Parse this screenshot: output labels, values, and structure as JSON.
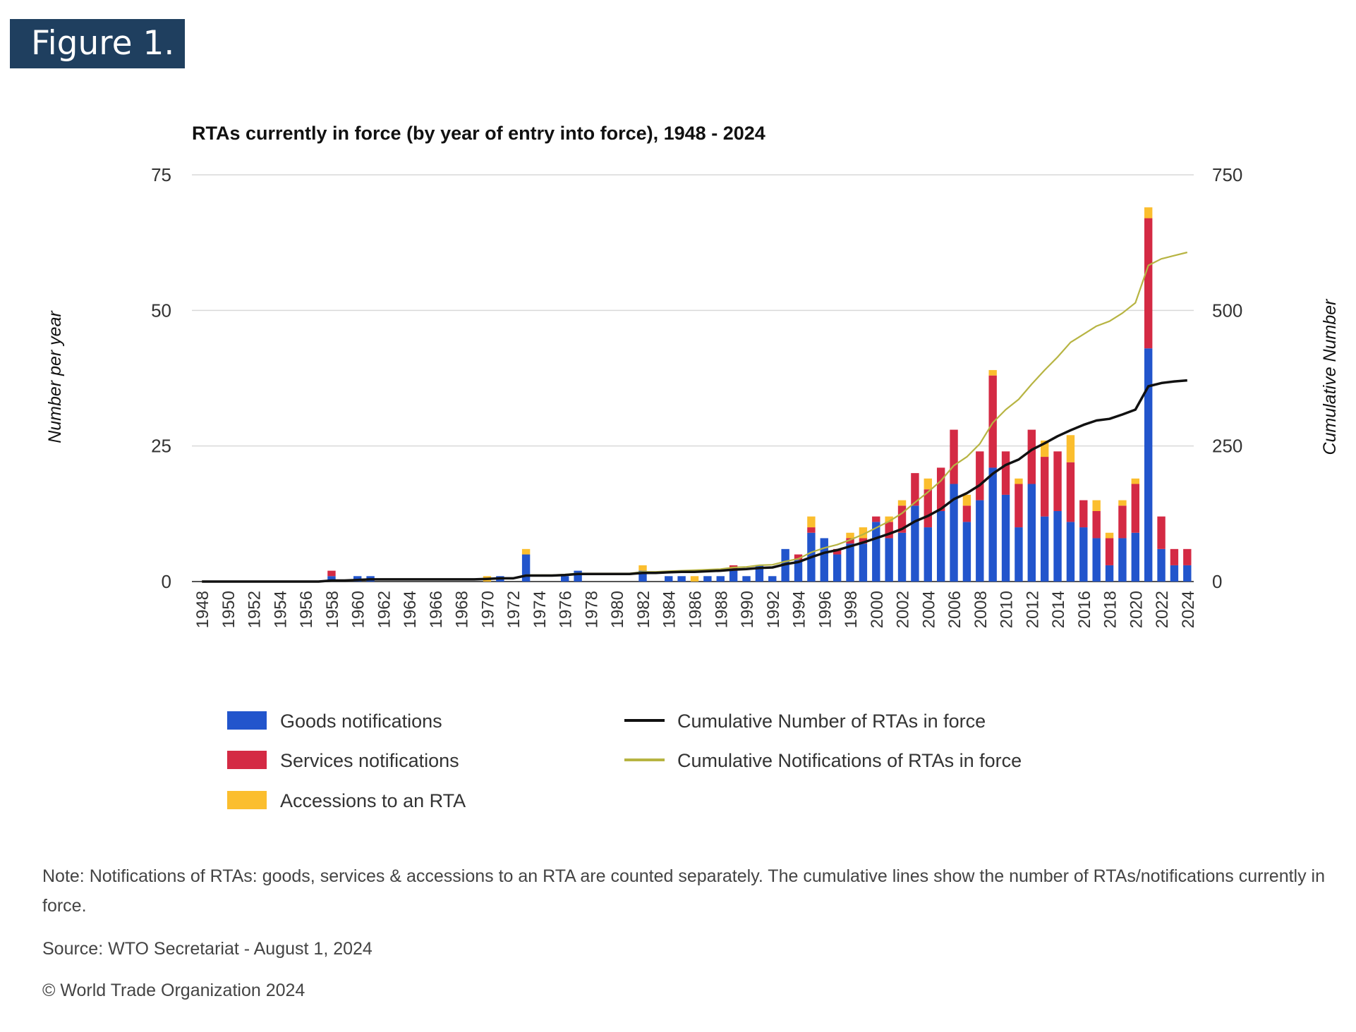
{
  "figure_label": "Figure 1.",
  "colors": {
    "goods": "#2255cc",
    "services": "#d42a44",
    "accessions": "#fbbe2e",
    "cum_rtas": "#111111",
    "cum_notif": "#b7b442",
    "grid": "#d9d9d9"
  },
  "chart_data": {
    "type": "bar",
    "title": "RTAs currently in force (by year of entry into force), 1948 - 2024",
    "ylabel_left": "Number per year",
    "ylabel_right": "Cumulative Number",
    "ylim_left": [
      0,
      75
    ],
    "ylim_right": [
      0,
      750
    ],
    "yticks_left": [
      "0",
      "25",
      "50",
      "75"
    ],
    "yticks_right": [
      "0",
      "250",
      "500",
      "750"
    ],
    "years": [
      1948,
      1949,
      1950,
      1951,
      1952,
      1953,
      1954,
      1955,
      1956,
      1957,
      1958,
      1959,
      1960,
      1961,
      1962,
      1963,
      1964,
      1965,
      1966,
      1967,
      1968,
      1969,
      1970,
      1971,
      1972,
      1973,
      1974,
      1975,
      1976,
      1977,
      1978,
      1979,
      1980,
      1981,
      1982,
      1983,
      1984,
      1985,
      1986,
      1987,
      1988,
      1989,
      1990,
      1991,
      1992,
      1993,
      1994,
      1995,
      1996,
      1997,
      1998,
      1999,
      2000,
      2001,
      2002,
      2003,
      2004,
      2005,
      2006,
      2007,
      2008,
      2009,
      2010,
      2011,
      2012,
      2013,
      2014,
      2015,
      2016,
      2017,
      2018,
      2019,
      2020,
      2021,
      2022,
      2023,
      2024
    ],
    "year_labels": [
      "1948",
      "1950",
      "1952",
      "1954",
      "1956",
      "1958",
      "1960",
      "1962",
      "1964",
      "1966",
      "1968",
      "1970",
      "1972",
      "1974",
      "1976",
      "1978",
      "1980",
      "1982",
      "1984",
      "1986",
      "1988",
      "1990",
      "1992",
      "1994",
      "1996",
      "1998",
      "2000",
      "2002",
      "2004",
      "2006",
      "2008",
      "2010",
      "2012",
      "2014",
      "2016",
      "2018",
      "2020",
      "2022",
      "2024"
    ],
    "series": [
      {
        "name": "Goods notifications",
        "kind": "bar",
        "values": [
          0,
          0,
          0,
          0,
          0,
          0,
          0,
          0,
          0,
          0,
          1,
          0,
          1,
          1,
          0,
          0,
          0,
          0,
          0,
          0,
          0,
          0,
          0,
          1,
          0,
          5,
          0,
          0,
          1,
          2,
          0,
          0,
          0,
          0,
          2,
          0,
          1,
          1,
          0,
          1,
          1,
          2,
          1,
          3,
          1,
          6,
          4,
          9,
          8,
          5,
          7,
          7,
          11,
          8,
          9,
          14,
          10,
          13,
          18,
          11,
          15,
          21,
          16,
          10,
          18,
          12,
          13,
          11,
          10,
          8,
          3,
          8,
          9,
          43,
          6,
          3,
          3
        ]
      },
      {
        "name": "Services notifications",
        "kind": "bar",
        "values": [
          0,
          0,
          0,
          0,
          0,
          0,
          0,
          0,
          0,
          0,
          1,
          0,
          0,
          0,
          0,
          0,
          0,
          0,
          0,
          0,
          0,
          0,
          0,
          0,
          0,
          0,
          0,
          0,
          0,
          0,
          0,
          0,
          0,
          0,
          0,
          0,
          0,
          0,
          0,
          0,
          0,
          1,
          0,
          0,
          0,
          0,
          1,
          1,
          0,
          1,
          1,
          1,
          1,
          3,
          5,
          6,
          7,
          8,
          10,
          3,
          9,
          17,
          8,
          8,
          10,
          11,
          11,
          11,
          5,
          5,
          5,
          6,
          9,
          24,
          6,
          3,
          3
        ]
      },
      {
        "name": "Accessions to an RTA",
        "kind": "bar",
        "values": [
          0,
          0,
          0,
          0,
          0,
          0,
          0,
          0,
          0,
          0,
          0,
          0,
          0,
          0,
          0,
          0,
          0,
          0,
          0,
          0,
          0,
          0,
          1,
          0,
          0,
          1,
          0,
          0,
          0,
          0,
          0,
          0,
          0,
          0,
          1,
          0,
          0,
          0,
          1,
          0,
          0,
          0,
          0,
          0,
          0,
          0,
          0,
          2,
          0,
          0,
          1,
          2,
          0,
          1,
          1,
          0,
          2,
          0,
          0,
          2,
          0,
          1,
          0,
          1,
          0,
          3,
          0,
          5,
          0,
          2,
          1,
          1,
          1,
          2,
          0,
          0,
          0
        ]
      },
      {
        "name": "Cumulative Number of RTAs in force",
        "kind": "line",
        "axis": "right",
        "values": [
          0,
          0,
          0,
          0,
          0,
          0,
          0,
          0,
          0,
          0,
          2,
          2,
          3,
          4,
          4,
          4,
          4,
          4,
          4,
          4,
          4,
          4,
          5,
          6,
          6,
          11,
          11,
          11,
          12,
          14,
          14,
          14,
          14,
          14,
          16,
          16,
          17,
          18,
          18,
          19,
          20,
          22,
          23,
          25,
          26,
          32,
          36,
          45,
          53,
          58,
          65,
          72,
          80,
          88,
          97,
          111,
          121,
          134,
          152,
          163,
          178,
          199,
          215,
          225,
          243,
          255,
          268,
          279,
          289,
          297,
          300,
          308,
          317,
          360,
          366,
          369,
          371
        ]
      },
      {
        "name": "Cumulative Notifications of RTAs in force",
        "kind": "line",
        "axis": "right",
        "values": [
          0,
          0,
          0,
          0,
          0,
          0,
          0,
          0,
          0,
          0,
          2,
          2,
          3,
          4,
          4,
          4,
          4,
          4,
          4,
          4,
          4,
          4,
          5,
          6,
          6,
          12,
          12,
          12,
          13,
          15,
          15,
          15,
          15,
          15,
          18,
          18,
          19,
          20,
          21,
          22,
          23,
          26,
          27,
          30,
          31,
          37,
          42,
          54,
          62,
          68,
          77,
          87,
          99,
          111,
          126,
          146,
          165,
          186,
          214,
          230,
          254,
          293,
          317,
          336,
          364,
          390,
          414,
          441,
          456,
          471,
          480,
          495,
          514,
          583,
          595,
          601,
          607
        ]
      }
    ],
    "legend_position": "bottom",
    "grid": true
  },
  "notes": {
    "note": "Note: Notifications of RTAs: goods, services & accessions to an RTA are counted separately. The cumulative lines show the number of RTAs/notifications currently in force.",
    "source": "Source: WTO Secretariat   -  August 1, 2024",
    "copyright": "© World Trade Organization 2024"
  }
}
